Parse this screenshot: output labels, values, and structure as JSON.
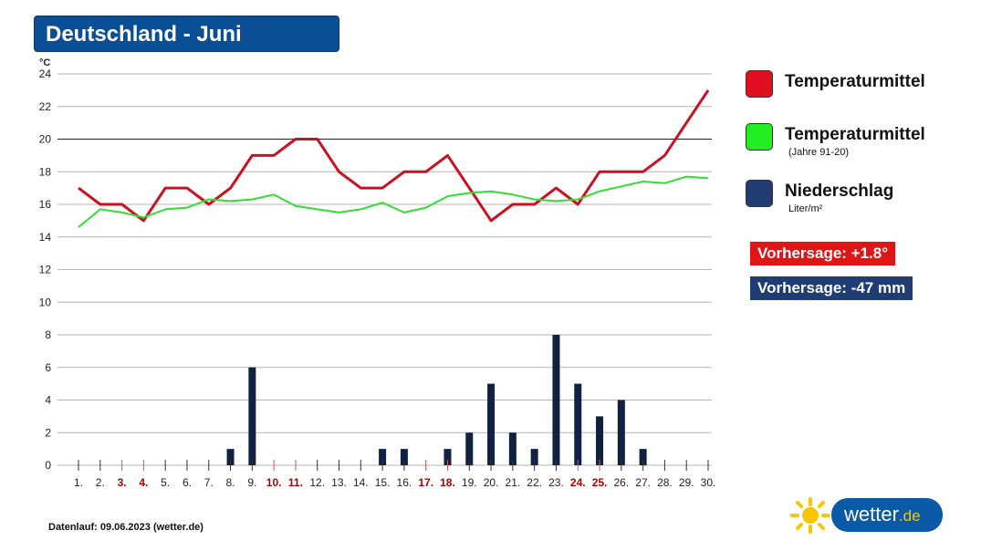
{
  "header": {
    "title": "Deutschland - Juni"
  },
  "legend": {
    "temp_label": "Temperaturmittel",
    "norm_label": "Temperaturmittel",
    "norm_sub": "(Jahre 91-20)",
    "precip_label": "Niederschlag",
    "precip_unit": "Liter/m²",
    "temp_color": "#e01020",
    "norm_color": "#22ee22",
    "precip_color": "#1f3d73"
  },
  "forecast": {
    "temp_badge": "Vorhersage: +1.8°",
    "precip_badge": "Vorhersage: -47 mm",
    "temp_badge_color": "#e01515",
    "precip_badge_color": "#1f3d73"
  },
  "footer": {
    "text": "Datenlauf: 09.06.2023 (wetter.de)"
  },
  "logo": {
    "text": "wetter",
    "tld": ".de"
  },
  "chart_data": {
    "type": "line+bar",
    "ylabel": "°C",
    "ylim": [
      0,
      24
    ],
    "yticks": [
      0,
      2,
      4,
      6,
      8,
      10,
      12,
      14,
      16,
      18,
      20,
      22,
      24
    ],
    "categories": [
      "1.",
      "2.",
      "3.",
      "4.",
      "5.",
      "6.",
      "7.",
      "8.",
      "9.",
      "10.",
      "11.",
      "12.",
      "13.",
      "14.",
      "15.",
      "16.",
      "17.",
      "18.",
      "19.",
      "20.",
      "21.",
      "22.",
      "23.",
      "24.",
      "25.",
      "26.",
      "27.",
      "28.",
      "29.",
      "30."
    ],
    "weekend_days": [
      "3.",
      "4.",
      "10.",
      "11.",
      "17.",
      "18.",
      "24.",
      "25."
    ],
    "weekend_color": "#b00000",
    "series": [
      {
        "name": "Temperaturmittel",
        "kind": "line",
        "color": "#cc1020",
        "values": [
          17,
          16,
          16,
          15,
          17,
          17,
          16,
          17,
          19,
          19,
          20,
          20,
          18,
          17,
          17,
          18,
          18,
          19,
          17,
          15,
          16,
          16,
          17,
          16,
          18,
          18,
          18,
          19,
          21,
          23
        ]
      },
      {
        "name": "Temperaturmittel (Jahre 91-20)",
        "kind": "line",
        "color": "#33dd33",
        "values": [
          14.6,
          15.7,
          15.5,
          15.2,
          15.7,
          15.8,
          16.3,
          16.2,
          16.3,
          16.6,
          15.9,
          15.7,
          15.5,
          15.7,
          16.1,
          15.5,
          15.8,
          16.5,
          16.7,
          16.8,
          16.6,
          16.3,
          16.2,
          16.3,
          16.8,
          17.1,
          17.4,
          17.3,
          17.7,
          17.6
        ]
      },
      {
        "name": "Niederschlag",
        "kind": "bar",
        "color": "#0f2244",
        "values": [
          0,
          0,
          0,
          0,
          0,
          0,
          0,
          1,
          6,
          0,
          0,
          0,
          0,
          0,
          1,
          1,
          0,
          1,
          2,
          5,
          2,
          1,
          8,
          5,
          3,
          4,
          1,
          0,
          0,
          0
        ]
      }
    ]
  }
}
